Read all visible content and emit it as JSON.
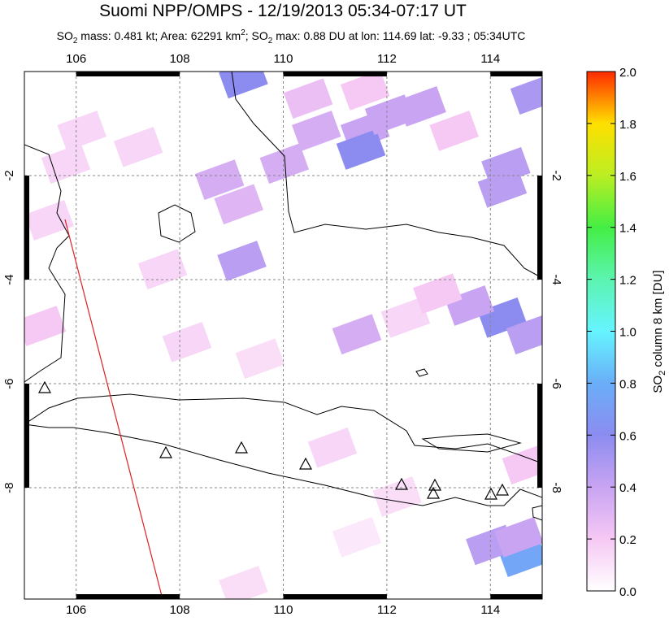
{
  "chart_data": {
    "type": "map",
    "title": "Suomi NPP/OMPS - 12/19/2013 05:34-07:17 UT",
    "subtitle": [
      "SO",
      "2",
      " mass: 0.481 kt; Area: 62291 km",
      "2",
      "; SO",
      "2",
      " max: 0.88 DU at lon: 114.69 lat: -9.33 ; 05:34UTC"
    ],
    "xlim": [
      105,
      115
    ],
    "ylim": [
      -10.14,
      0
    ],
    "xticks": [
      106,
      108,
      110,
      112,
      114
    ],
    "yticks": [
      -8,
      -6,
      -4,
      -2
    ],
    "colorbar": {
      "label": [
        "SO",
        "2",
        " column 8 km [DU]"
      ],
      "lim": [
        0,
        2
      ],
      "ticks": [
        {
          "value": 0,
          "label": "0.0"
        },
        {
          "value": 0.2,
          "label": "0.2"
        },
        {
          "value": 0.4,
          "label": "0.4"
        },
        {
          "value": 0.6,
          "label": "0.6"
        },
        {
          "value": 0.8,
          "label": "0.8"
        },
        {
          "value": 1,
          "label": "1.0"
        },
        {
          "value": 1.2,
          "label": "1.2"
        },
        {
          "value": 1.4,
          "label": "1.4"
        },
        {
          "value": 1.6,
          "label": "1.6"
        },
        {
          "value": 1.8,
          "label": "1.8"
        },
        {
          "value": 2,
          "label": "2.0"
        }
      ],
      "colormap": [
        "#ffffff",
        "#f6c8f4",
        "#c8a4f2",
        "#8c8cf0",
        "#6aaef8",
        "#66f4ff",
        "#5cf4b0",
        "#44ee44",
        "#bbee22",
        "#ffe000",
        "#ff2a00"
      ]
    },
    "pixels": {
      "lon": [
        109.23,
        111.58,
        111.5,
        112.05,
        112.67,
        110.64,
        109.2,
        109.14,
        110.02,
        108.77,
        111.42,
        114.23,
        113.6,
        114.78,
        114.23,
        114.3,
        114.86,
        114.63,
        114.0,
        114.55,
        105.8,
        105.48,
        105.33,
        107.67,
        108.14,
        109.55,
        112.36,
        112.98,
        113.3,
        111.58,
        110.48,
        107.2,
        106.11,
        110.95,
        112.2,
        114.7,
        109.23,
        111.42
      ],
      "lat": [
        -0.13,
        -1.14,
        -1.5,
        -0.83,
        -0.67,
        -1.14,
        -3.64,
        -2.55,
        -1.77,
        -2.08,
        -5.05,
        -4.73,
        -4.5,
        -5.05,
        -2.23,
        -1.84,
        -0.44,
        -9.33,
        -9.1,
        -8.95,
        -1.77,
        -2.86,
        -4.89,
        -3.8,
        -5.2,
        -5.52,
        -4.73,
        -4.27,
        -1.14,
        -0.36,
        -0.52,
        -1.45,
        -1.14,
        -7.23,
        -8.17,
        -7.55,
        -9.89,
        -8.95
      ],
      "values": [
        0.6,
        0.4,
        0.6,
        0.4,
        0.4,
        0.35,
        0.45,
        0.3,
        0.35,
        0.35,
        0.35,
        0.6,
        0.4,
        0.45,
        0.45,
        0.45,
        0.5,
        0.75,
        0.45,
        0.4,
        0.15,
        0.15,
        0.2,
        0.15,
        0.15,
        0.12,
        0.15,
        0.2,
        0.2,
        0.2,
        0.25,
        0.15,
        0.15,
        0.15,
        0.12,
        0.2,
        0.12,
        0.08
      ]
    }
  }
}
